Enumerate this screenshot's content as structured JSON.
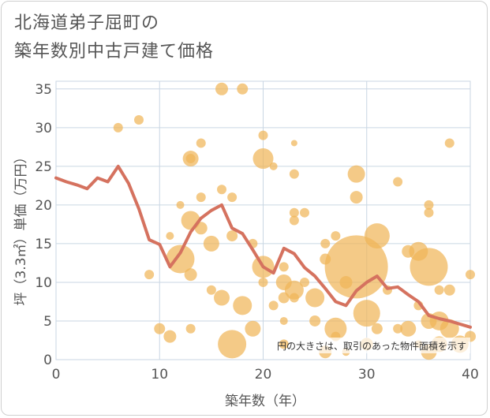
{
  "title_lines": [
    "北海道弟子屈町の",
    "築年数別中古戸建て価格"
  ],
  "chart_data": {
    "type": "scatter",
    "xlabel": "築年数（年）",
    "ylabel": "坪（3.3㎡）単価（万円）",
    "xlim": [
      0,
      40
    ],
    "ylim": [
      0,
      36
    ],
    "xticks": [
      0,
      10,
      20,
      30,
      40
    ],
    "yticks": [
      0,
      5,
      10,
      15,
      20,
      25,
      30,
      35
    ],
    "grid": true,
    "note": "円の大きさは、取引のあった物件面積を示す",
    "colors": {
      "bubble": "#f0b559",
      "line": "#d5725f",
      "grid": "#c9d6e3",
      "plot_bg": "#ffffff"
    },
    "trend_line": {
      "x": [
        0,
        1,
        2,
        3,
        4,
        5,
        6,
        7,
        8,
        9,
        10,
        11,
        12,
        13,
        14,
        15,
        16,
        17,
        18,
        19,
        20,
        21,
        22,
        23,
        24,
        25,
        26,
        27,
        28,
        29,
        30,
        31,
        32,
        33,
        34,
        35,
        36,
        37,
        38,
        39,
        40
      ],
      "y": [
        23.5,
        23.0,
        22.6,
        22.1,
        23.5,
        23.0,
        25.0,
        22.8,
        19.5,
        15.5,
        14.9,
        12.0,
        13.8,
        16.5,
        18.3,
        19.3,
        20.0,
        17.0,
        16.3,
        14.2,
        12.0,
        11.2,
        14.4,
        13.7,
        11.9,
        10.8,
        9.2,
        7.5,
        7.0,
        8.9,
        10.0,
        10.8,
        9.2,
        9.4,
        8.4,
        7.5,
        5.7,
        5.3,
        5.0,
        4.6,
        4.2
      ]
    },
    "points": [
      {
        "x": 6,
        "y": 30,
        "r": 6
      },
      {
        "x": 8,
        "y": 31,
        "r": 6
      },
      {
        "x": 9,
        "y": 11,
        "r": 6
      },
      {
        "x": 10,
        "y": 4,
        "r": 7
      },
      {
        "x": 11,
        "y": 3,
        "r": 8
      },
      {
        "x": 11,
        "y": 16,
        "r": 5
      },
      {
        "x": 12,
        "y": 13,
        "r": 18
      },
      {
        "x": 12,
        "y": 20,
        "r": 5
      },
      {
        "x": 13,
        "y": 26,
        "r": 10
      },
      {
        "x": 13,
        "y": 26,
        "r": 6
      },
      {
        "x": 13,
        "y": 18,
        "r": 12
      },
      {
        "x": 13,
        "y": 11,
        "r": 8
      },
      {
        "x": 13,
        "y": 4,
        "r": 6
      },
      {
        "x": 14,
        "y": 28,
        "r": 6
      },
      {
        "x": 14,
        "y": 21,
        "r": 6
      },
      {
        "x": 14,
        "y": 17,
        "r": 8
      },
      {
        "x": 15,
        "y": 15,
        "r": 10
      },
      {
        "x": 15,
        "y": 9,
        "r": 6
      },
      {
        "x": 16,
        "y": 35,
        "r": 8
      },
      {
        "x": 16,
        "y": 22,
        "r": 6
      },
      {
        "x": 16,
        "y": 8,
        "r": 10
      },
      {
        "x": 17,
        "y": 21,
        "r": 6
      },
      {
        "x": 17,
        "y": 16,
        "r": 7
      },
      {
        "x": 17,
        "y": 2,
        "r": 18
      },
      {
        "x": 18,
        "y": 35,
        "r": 7
      },
      {
        "x": 18,
        "y": 7,
        "r": 12
      },
      {
        "x": 19,
        "y": 4,
        "r": 10
      },
      {
        "x": 19,
        "y": 15,
        "r": 6
      },
      {
        "x": 20,
        "y": 29,
        "r": 6
      },
      {
        "x": 20,
        "y": 26,
        "r": 13
      },
      {
        "x": 20,
        "y": 12,
        "r": 14
      },
      {
        "x": 20,
        "y": 10,
        "r": 6
      },
      {
        "x": 21,
        "y": 25,
        "r": 5
      },
      {
        "x": 21,
        "y": 7,
        "r": 6
      },
      {
        "x": 22,
        "y": 12,
        "r": 6
      },
      {
        "x": 22,
        "y": 10,
        "r": 10
      },
      {
        "x": 22,
        "y": 8,
        "r": 7
      },
      {
        "x": 22,
        "y": 5,
        "r": 5
      },
      {
        "x": 22,
        "y": 2,
        "r": 6
      },
      {
        "x": 23,
        "y": 28,
        "r": 4
      },
      {
        "x": 23,
        "y": 24,
        "r": 6
      },
      {
        "x": 23,
        "y": 19,
        "r": 6
      },
      {
        "x": 23,
        "y": 18,
        "r": 6
      },
      {
        "x": 23,
        "y": 9,
        "r": 12
      },
      {
        "x": 23,
        "y": 8,
        "r": 6
      },
      {
        "x": 24,
        "y": 19,
        "r": 6
      },
      {
        "x": 24,
        "y": 10,
        "r": 6
      },
      {
        "x": 25,
        "y": 8,
        "r": 12
      },
      {
        "x": 25,
        "y": 5,
        "r": 7
      },
      {
        "x": 26,
        "y": 15,
        "r": 6
      },
      {
        "x": 26,
        "y": 13,
        "r": 7
      },
      {
        "x": 26,
        "y": 1,
        "r": 8
      },
      {
        "x": 27,
        "y": 16,
        "r": 6
      },
      {
        "x": 27,
        "y": 4,
        "r": 14
      },
      {
        "x": 27,
        "y": 3,
        "r": 6
      },
      {
        "x": 28,
        "y": 10,
        "r": 8
      },
      {
        "x": 28,
        "y": 1,
        "r": 5
      },
      {
        "x": 29,
        "y": 12,
        "r": 40
      },
      {
        "x": 29,
        "y": 24,
        "r": 11
      },
      {
        "x": 29,
        "y": 21,
        "r": 8
      },
      {
        "x": 30,
        "y": 6,
        "r": 17
      },
      {
        "x": 30,
        "y": 2,
        "r": 8
      },
      {
        "x": 31,
        "y": 16,
        "r": 16
      },
      {
        "x": 31,
        "y": 4,
        "r": 7
      },
      {
        "x": 32,
        "y": 9,
        "r": 6
      },
      {
        "x": 33,
        "y": 23,
        "r": 6
      },
      {
        "x": 33,
        "y": 4,
        "r": 6
      },
      {
        "x": 34,
        "y": 14,
        "r": 8
      },
      {
        "x": 34,
        "y": 4,
        "r": 10
      },
      {
        "x": 35,
        "y": 14,
        "r": 12
      },
      {
        "x": 35,
        "y": 7,
        "r": 6
      },
      {
        "x": 35,
        "y": 2,
        "r": 5
      },
      {
        "x": 36,
        "y": 20,
        "r": 6
      },
      {
        "x": 36,
        "y": 19,
        "r": 6
      },
      {
        "x": 36,
        "y": 12,
        "r": 24
      },
      {
        "x": 36,
        "y": 5,
        "r": 10
      },
      {
        "x": 36,
        "y": 1,
        "r": 10
      },
      {
        "x": 37,
        "y": 9,
        "r": 6
      },
      {
        "x": 37,
        "y": 5,
        "r": 12
      },
      {
        "x": 37,
        "y": 2,
        "r": 10
      },
      {
        "x": 38,
        "y": 28,
        "r": 6
      },
      {
        "x": 38,
        "y": 9,
        "r": 7
      },
      {
        "x": 38,
        "y": 4,
        "r": 12
      },
      {
        "x": 39,
        "y": 2,
        "r": 11
      },
      {
        "x": 40,
        "y": 11,
        "r": 6
      },
      {
        "x": 40,
        "y": 3,
        "r": 7
      }
    ]
  }
}
